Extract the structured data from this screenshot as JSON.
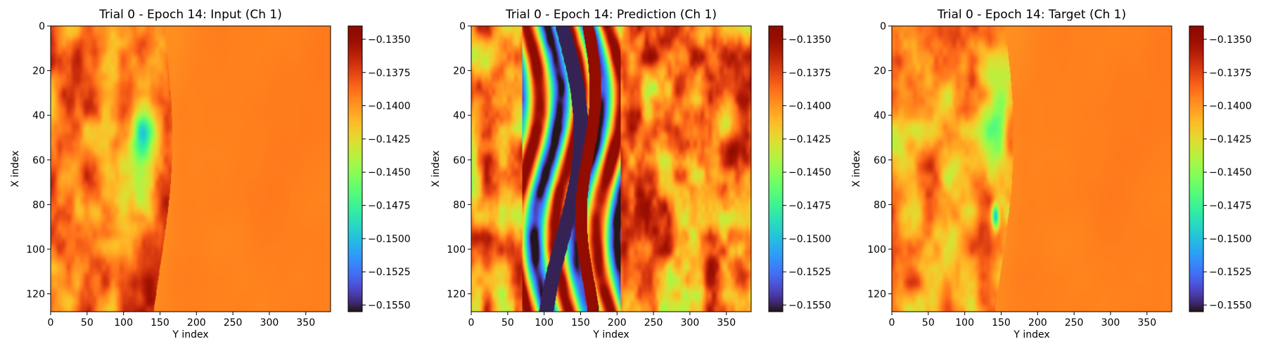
{
  "figure": {
    "panels": [
      {
        "title": "Trial 0 - Epoch 14: Input (Ch 1)",
        "xlabel": "Y index",
        "ylabel": "X index",
        "field": "input"
      },
      {
        "title": "Trial 0 - Epoch 14: Prediction (Ch 1)",
        "xlabel": "Y index",
        "ylabel": "X index",
        "field": "prediction"
      },
      {
        "title": "Trial 0 - Epoch 14: Target (Ch 1)",
        "xlabel": "Y index",
        "ylabel": "X index",
        "field": "target"
      }
    ]
  },
  "chart_data": {
    "type": "heatmap",
    "colormap": "turbo",
    "grid": false,
    "colorbar_position": "right",
    "x_range": [
      0,
      384
    ],
    "y_range": [
      0,
      128
    ],
    "y_inverted": true,
    "x_ticks": [
      0,
      50,
      100,
      150,
      200,
      250,
      300,
      350
    ],
    "y_ticks": [
      0,
      20,
      40,
      60,
      80,
      100,
      120
    ],
    "vmin": -0.1555,
    "vmax": -0.134,
    "colorbar_ticks": [
      "−0.1350",
      "−0.1375",
      "−0.1400",
      "−0.1425",
      "−0.1450",
      "−0.1475",
      "−0.1500",
      "−0.1525",
      "−0.1550"
    ],
    "colorbar_tick_values": [
      -0.135,
      -0.1375,
      -0.14,
      -0.1425,
      -0.145,
      -0.1475,
      -0.15,
      -0.1525,
      -0.155
    ],
    "tick_labels_x": [
      "0",
      "50",
      "100",
      "150",
      "200",
      "250",
      "300",
      "350"
    ],
    "tick_labels_y": [
      "0",
      "20",
      "40",
      "60",
      "80",
      "100",
      "120"
    ]
  }
}
